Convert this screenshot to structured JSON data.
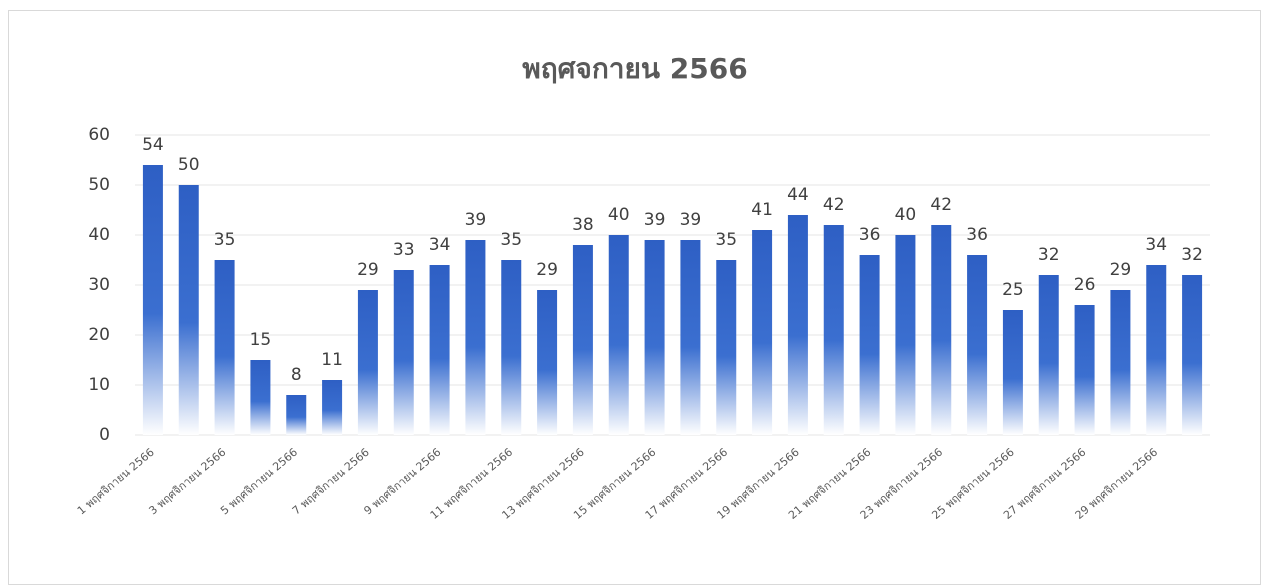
{
  "chart_data": {
    "type": "bar",
    "title": "พฤศจกายน 2566",
    "categories": [
      "1 พฤศจิกายน 2566",
      null,
      "3 พฤศจิกายน 2566",
      null,
      "5 พฤศจิกายน 2566",
      null,
      "7 พฤศจิกายน 2566",
      null,
      "9 พฤศจิกายน 2566",
      null,
      "11 พฤศจิกายน 2566",
      null,
      "13 พฤศจิกายน 2566",
      null,
      "15 พฤศจิกายน 2566",
      null,
      "17 พฤศจิกายน 2566",
      null,
      "19 พฤศจิกายน 2566",
      null,
      "21 พฤศจิกายน 2566",
      null,
      "23 พฤศจิกายน 2566",
      null,
      "25 พฤศจิกายน 2566",
      null,
      "27 พฤศจิกายน 2566",
      null,
      "29 พฤศจิกายน 2566",
      null
    ],
    "values": [
      54,
      50,
      35,
      15,
      8,
      11,
      29,
      33,
      34,
      39,
      35,
      29,
      38,
      40,
      39,
      39,
      35,
      41,
      44,
      42,
      36,
      40,
      42,
      36,
      25,
      32,
      26,
      29,
      34,
      32
    ],
    "color": "#2e5fc4",
    "ylim": [
      0,
      60
    ],
    "yticks": [
      0,
      10,
      20,
      30,
      40,
      50,
      60
    ],
    "grid": true
  }
}
